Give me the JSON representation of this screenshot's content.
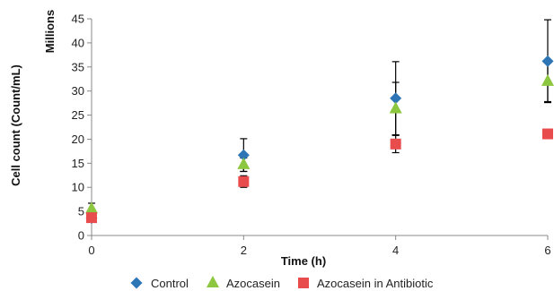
{
  "chart_data": {
    "type": "scatter",
    "title": "",
    "xlabel": "Time (h)",
    "ylabel": "Cell count (Count/mL)",
    "y_unit_label": "Millions",
    "xlim": [
      0,
      6
    ],
    "ylim": [
      0,
      45
    ],
    "x_ticks": [
      0,
      2,
      4,
      6
    ],
    "y_ticks": [
      0,
      5,
      10,
      15,
      20,
      25,
      30,
      35,
      40,
      45
    ],
    "grid": false,
    "legend_position": "bottom",
    "series": [
      {
        "name": "Control",
        "marker": "diamond",
        "color": "#2e75b6",
        "points": [
          {
            "x": 0,
            "y": 3.6,
            "err": 0.4
          },
          {
            "x": 2,
            "y": 16.7,
            "err": 3.4
          },
          {
            "x": 4,
            "y": 28.5,
            "err": 7.6
          },
          {
            "x": 6,
            "y": 36.2,
            "err": 8.6
          }
        ]
      },
      {
        "name": "Azocasein",
        "marker": "triangle",
        "color": "#8dc63f",
        "points": [
          {
            "x": 0,
            "y": 5.5,
            "err": 1.2
          },
          {
            "x": 2,
            "y": 14.7,
            "err": 1.4
          },
          {
            "x": 4,
            "y": 26.3,
            "err": 5.5
          },
          {
            "x": 6,
            "y": 32.0,
            "err": 4.2
          }
        ]
      },
      {
        "name": "Azocasein in Antibiotic",
        "marker": "square",
        "color": "#e84c4c",
        "points": [
          {
            "x": 0,
            "y": 3.7,
            "err": 0.3
          },
          {
            "x": 2,
            "y": 11.2,
            "err": 1.2
          },
          {
            "x": 4,
            "y": 19.0,
            "err": 1.8
          },
          {
            "x": 6,
            "y": 21.1,
            "err": 0.5
          }
        ]
      }
    ]
  }
}
